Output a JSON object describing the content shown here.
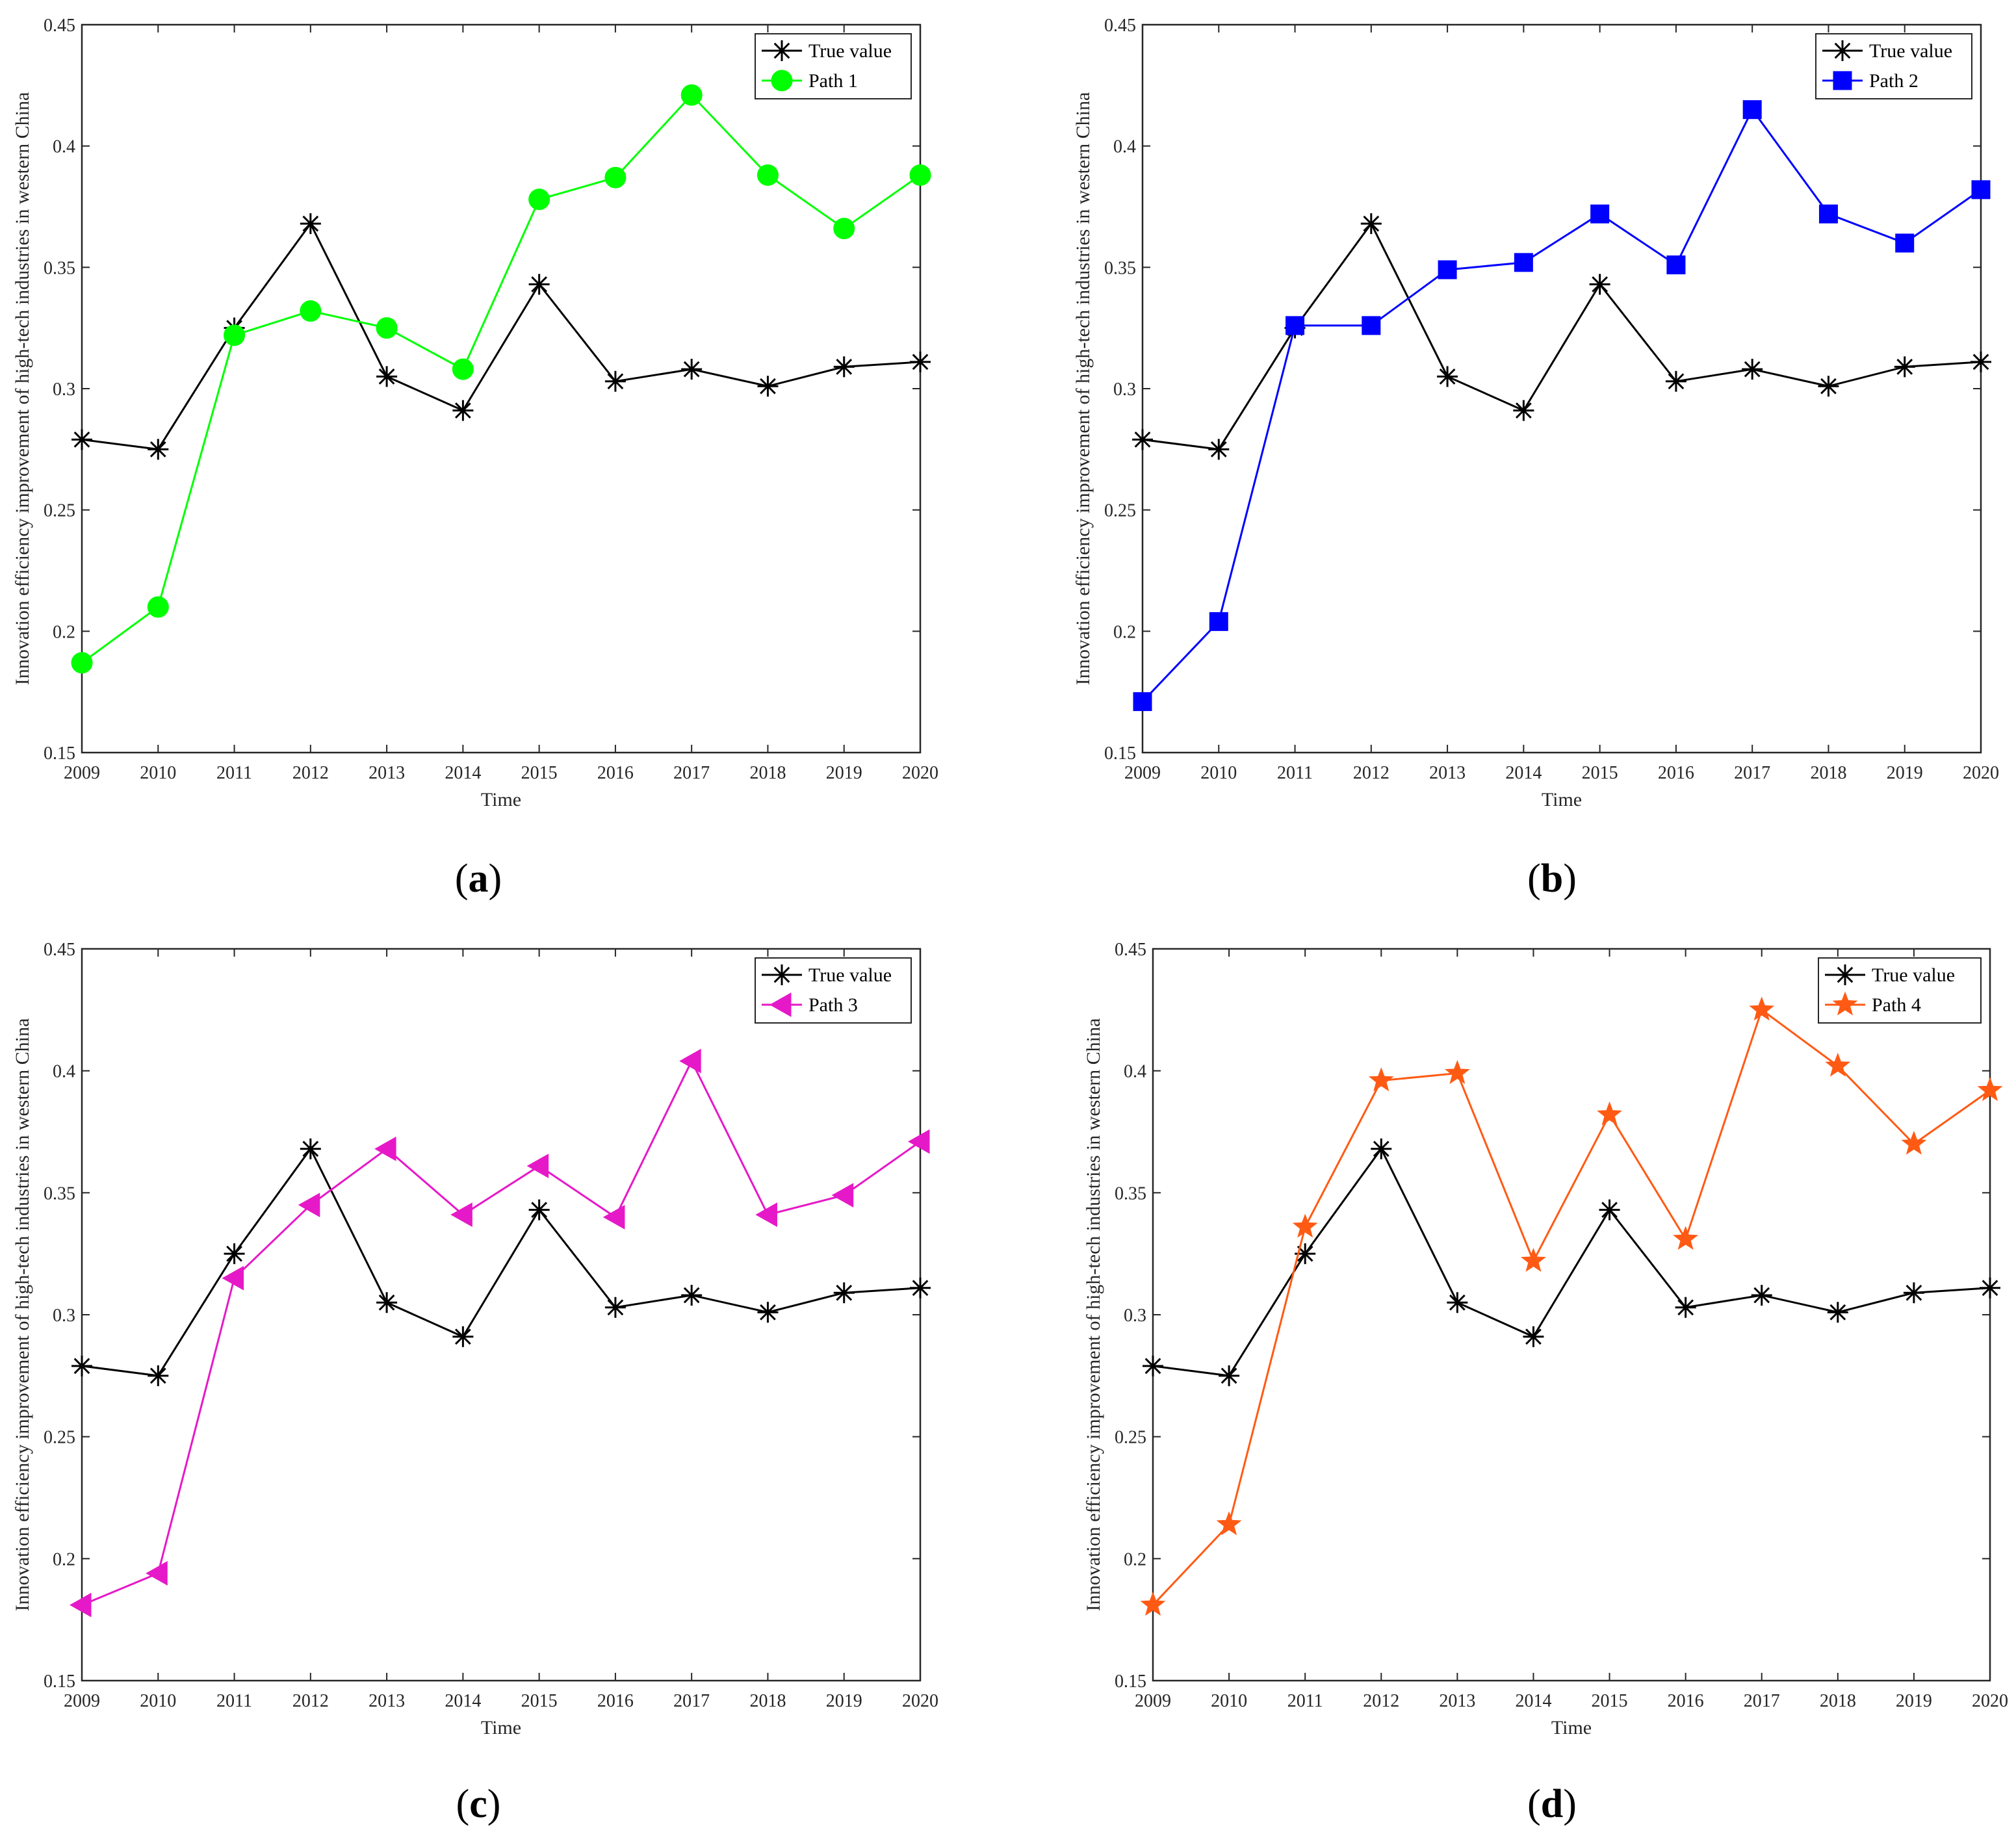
{
  "chart_data": [
    {
      "type": "line",
      "panel_caption": "a",
      "xlabel": "Time",
      "ylabel": "Innovation efficiency improvement of high-tech industries in western China",
      "x": [
        2009,
        2010,
        2011,
        2012,
        2013,
        2014,
        2015,
        2016,
        2017,
        2018,
        2019,
        2020
      ],
      "xticks": [
        "2009",
        "2010",
        "2011",
        "2012",
        "2013",
        "2014",
        "2015",
        "2016",
        "2017",
        "2018",
        "2019",
        "2020"
      ],
      "ylim": [
        0.15,
        0.45
      ],
      "yticks": [
        "0.15",
        "0.2",
        "0.25",
        "0.3",
        "0.35",
        "0.4",
        "0.45"
      ],
      "legend_position": "top-right",
      "series": [
        {
          "name": "True value",
          "color": "#000000",
          "marker": "asterisk",
          "values": [
            0.279,
            0.275,
            0.325,
            0.368,
            0.305,
            0.291,
            0.343,
            0.303,
            0.308,
            0.301,
            0.309,
            0.311
          ]
        },
        {
          "name": "Path 1",
          "color": "#00ff00",
          "marker": "circle",
          "values": [
            0.187,
            0.21,
            0.322,
            0.332,
            0.325,
            0.308,
            0.378,
            0.387,
            0.421,
            0.388,
            0.366,
            0.388
          ]
        }
      ]
    },
    {
      "type": "line",
      "panel_caption": "b",
      "xlabel": "Time",
      "ylabel": "Innovation efficiency improvement of high-tech industries in western China",
      "x": [
        2009,
        2010,
        2011,
        2012,
        2013,
        2014,
        2015,
        2016,
        2017,
        2018,
        2019,
        2020
      ],
      "xticks": [
        "2009",
        "2010",
        "2011",
        "2012",
        "2013",
        "2014",
        "2015",
        "2016",
        "2017",
        "2018",
        "2019",
        "2020"
      ],
      "ylim": [
        0.15,
        0.45
      ],
      "yticks": [
        "0.15",
        "0.2",
        "0.25",
        "0.3",
        "0.35",
        "0.4",
        "0.45"
      ],
      "legend_position": "top-right",
      "series": [
        {
          "name": "True value",
          "color": "#000000",
          "marker": "asterisk",
          "values": [
            0.279,
            0.275,
            0.325,
            0.368,
            0.305,
            0.291,
            0.343,
            0.303,
            0.308,
            0.301,
            0.309,
            0.311
          ]
        },
        {
          "name": "Path 2",
          "color": "#0000ff",
          "marker": "square",
          "values": [
            0.171,
            0.204,
            0.326,
            0.326,
            0.349,
            0.352,
            0.372,
            0.351,
            0.415,
            0.372,
            0.36,
            0.382
          ]
        }
      ]
    },
    {
      "type": "line",
      "panel_caption": "c",
      "xlabel": "Time",
      "ylabel": "Innovation efficiency improvement of high-tech industries in western China",
      "x": [
        2009,
        2010,
        2011,
        2012,
        2013,
        2014,
        2015,
        2016,
        2017,
        2018,
        2019,
        2020
      ],
      "xticks": [
        "2009",
        "2010",
        "2011",
        "2012",
        "2013",
        "2014",
        "2015",
        "2016",
        "2017",
        "2018",
        "2019",
        "2020"
      ],
      "ylim": [
        0.15,
        0.45
      ],
      "yticks": [
        "0.15",
        "0.2",
        "0.25",
        "0.3",
        "0.35",
        "0.4",
        "0.45"
      ],
      "legend_position": "top-right",
      "series": [
        {
          "name": "True value",
          "color": "#000000",
          "marker": "asterisk",
          "values": [
            0.279,
            0.275,
            0.325,
            0.368,
            0.305,
            0.291,
            0.343,
            0.303,
            0.308,
            0.301,
            0.309,
            0.311
          ]
        },
        {
          "name": "Path 3",
          "color": "#e619c8",
          "marker": "triangle-left",
          "values": [
            0.181,
            0.194,
            0.315,
            0.345,
            0.368,
            0.341,
            0.361,
            0.34,
            0.404,
            0.341,
            0.349,
            0.371
          ]
        }
      ]
    },
    {
      "type": "line",
      "panel_caption": "d",
      "xlabel": "Time",
      "ylabel": "Innovation efficiency improvement of high-tech industries in western China",
      "x": [
        2009,
        2010,
        2011,
        2012,
        2013,
        2014,
        2015,
        2016,
        2017,
        2018,
        2019,
        2020
      ],
      "xticks": [
        "2009",
        "2010",
        "2011",
        "2012",
        "2013",
        "2014",
        "2015",
        "2016",
        "2017",
        "2018",
        "2019",
        "2020"
      ],
      "ylim": [
        0.15,
        0.45
      ],
      "yticks": [
        "0.15",
        "0.2",
        "0.25",
        "0.3",
        "0.35",
        "0.4",
        "0.45"
      ],
      "legend_position": "top-right",
      "series": [
        {
          "name": "True value",
          "color": "#000000",
          "marker": "asterisk",
          "values": [
            0.279,
            0.275,
            0.325,
            0.368,
            0.305,
            0.291,
            0.343,
            0.303,
            0.308,
            0.301,
            0.309,
            0.311
          ]
        },
        {
          "name": "Path 4",
          "color": "#ff5a14",
          "marker": "star",
          "values": [
            0.181,
            0.214,
            0.336,
            0.396,
            0.399,
            0.322,
            0.382,
            0.331,
            0.425,
            0.402,
            0.37,
            0.392
          ]
        }
      ]
    }
  ]
}
